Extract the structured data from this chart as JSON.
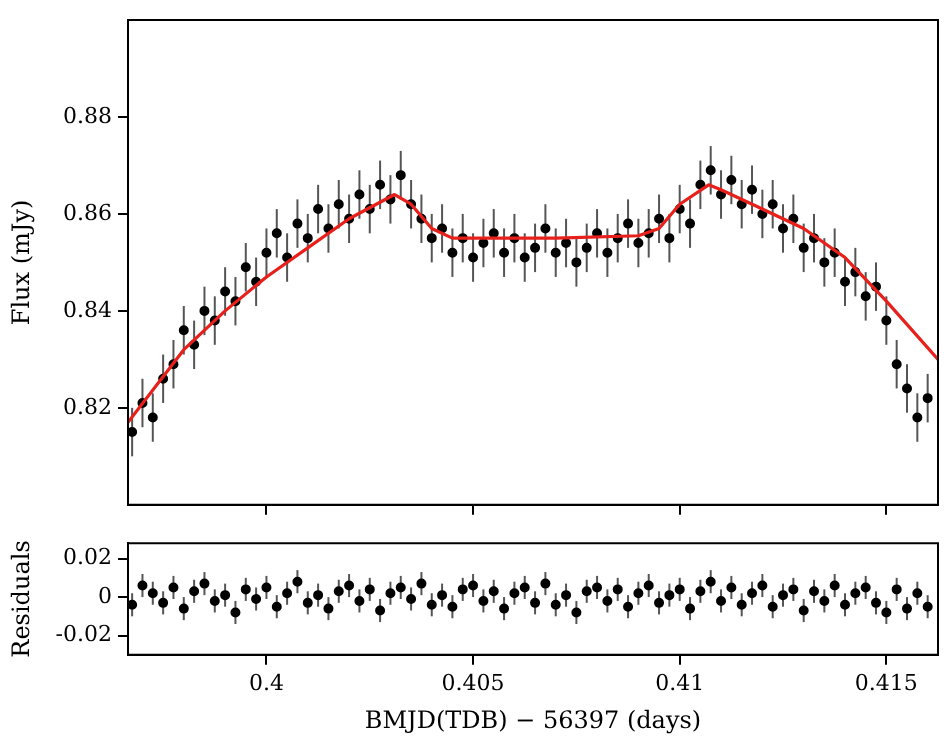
{
  "chart_data": [
    {
      "type": "scatter",
      "ylabel": "Flux (mJy)",
      "xlim": [
        0.39665,
        0.41625
      ],
      "xticks": [
        {
          "value": 0.4,
          "label": null
        },
        {
          "value": 0.405,
          "label": null
        },
        {
          "value": 0.41,
          "label": null
        },
        {
          "value": 0.415,
          "label": null
        }
      ],
      "ylim": [
        0.8,
        0.9
      ],
      "yticks": [
        0.82,
        0.84,
        0.86,
        0.88
      ],
      "tick_labels": "y",
      "grid": false,
      "legend": false,
      "marker": "circle",
      "x": [
        0.39675,
        0.397,
        0.39725,
        0.3975,
        0.39775,
        0.398,
        0.39825,
        0.3985,
        0.39875,
        0.399,
        0.39925,
        0.3995,
        0.39975,
        0.4,
        0.40025,
        0.4005,
        0.40075,
        0.401,
        0.40125,
        0.4015,
        0.40175,
        0.402,
        0.40225,
        0.4025,
        0.40275,
        0.403,
        0.40325,
        0.4035,
        0.40375,
        0.404,
        0.40425,
        0.4045,
        0.40475,
        0.405,
        0.40525,
        0.4055,
        0.40575,
        0.406,
        0.40625,
        0.4065,
        0.40675,
        0.407,
        0.40725,
        0.4075,
        0.40775,
        0.408,
        0.40825,
        0.4085,
        0.40875,
        0.409,
        0.40925,
        0.4095,
        0.40975,
        0.41,
        0.41025,
        0.4105,
        0.41075,
        0.411,
        0.41125,
        0.4115,
        0.41175,
        0.412,
        0.41225,
        0.4125,
        0.41275,
        0.413,
        0.41325,
        0.4135,
        0.41375,
        0.414,
        0.41425,
        0.4145,
        0.41475,
        0.415,
        0.41525,
        0.4155,
        0.41575,
        0.416
      ],
      "series": [
        {
          "type": "scatter",
          "color": "#000000",
          "values": [
            0.815,
            0.821,
            0.818,
            0.826,
            0.829,
            0.836,
            0.833,
            0.84,
            0.838,
            0.844,
            0.842,
            0.849,
            0.846,
            0.852,
            0.856,
            0.851,
            0.858,
            0.855,
            0.861,
            0.857,
            0.862,
            0.859,
            0.864,
            0.861,
            0.866,
            0.863,
            0.868,
            0.862,
            0.859,
            0.855,
            0.857,
            0.852,
            0.855,
            0.851,
            0.854,
            0.856,
            0.852,
            0.855,
            0.851,
            0.853,
            0.857,
            0.852,
            0.854,
            0.85,
            0.853,
            0.856,
            0.852,
            0.855,
            0.858,
            0.854,
            0.856,
            0.859,
            0.855,
            0.861,
            0.858,
            0.866,
            0.869,
            0.864,
            0.867,
            0.862,
            0.865,
            0.86,
            0.862,
            0.857,
            0.859,
            0.853,
            0.855,
            0.85,
            0.852,
            0.846,
            0.848,
            0.843,
            0.845,
            0.838,
            0.829,
            0.824,
            0.818,
            0.822
          ],
          "errors": [
            0.005,
            0.005,
            0.005,
            0.005,
            0.005,
            0.005,
            0.005,
            0.005,
            0.005,
            0.005,
            0.005,
            0.005,
            0.005,
            0.005,
            0.005,
            0.005,
            0.005,
            0.005,
            0.005,
            0.005,
            0.005,
            0.005,
            0.005,
            0.005,
            0.005,
            0.005,
            0.005,
            0.005,
            0.005,
            0.005,
            0.005,
            0.005,
            0.005,
            0.005,
            0.005,
            0.005,
            0.005,
            0.005,
            0.005,
            0.005,
            0.005,
            0.005,
            0.005,
            0.005,
            0.005,
            0.005,
            0.005,
            0.005,
            0.005,
            0.005,
            0.005,
            0.005,
            0.005,
            0.005,
            0.005,
            0.005,
            0.005,
            0.005,
            0.005,
            0.005,
            0.005,
            0.005,
            0.005,
            0.005,
            0.005,
            0.005,
            0.005,
            0.005,
            0.005,
            0.005,
            0.005,
            0.005,
            0.005,
            0.005,
            0.005,
            0.005,
            0.005,
            0.005
          ]
        },
        {
          "type": "line",
          "color": "#e8201c",
          "marker": "none",
          "x": [
            0.39665,
            0.398,
            0.399,
            0.4,
            0.401,
            0.402,
            0.4031,
            0.4035,
            0.404,
            0.4045,
            0.407,
            0.409,
            0.4095,
            0.41,
            0.4107,
            0.411,
            0.412,
            0.413,
            0.414,
            0.415,
            0.41625
          ],
          "values": [
            0.817,
            0.832,
            0.84,
            0.847,
            0.853,
            0.859,
            0.864,
            0.862,
            0.857,
            0.855,
            0.855,
            0.8555,
            0.857,
            0.862,
            0.866,
            0.865,
            0.861,
            0.857,
            0.851,
            0.842,
            0.83
          ]
        }
      ]
    },
    {
      "type": "scatter",
      "ylabel": "Residuals",
      "xlabel": "BMJD(TDB) − 56397 (days)",
      "xlim": [
        0.39665,
        0.41625
      ],
      "xticks": [
        0.4,
        0.405,
        0.41,
        0.415
      ],
      "ylim": [
        -0.03,
        0.028
      ],
      "yticks": [
        -0.02,
        0,
        0.02
      ],
      "grid": false,
      "legend": false,
      "marker": "circle",
      "x": [
        0.39675,
        0.397,
        0.39725,
        0.3975,
        0.39775,
        0.398,
        0.39825,
        0.3985,
        0.39875,
        0.399,
        0.39925,
        0.3995,
        0.39975,
        0.4,
        0.40025,
        0.4005,
        0.40075,
        0.401,
        0.40125,
        0.4015,
        0.40175,
        0.402,
        0.40225,
        0.4025,
        0.40275,
        0.403,
        0.40325,
        0.4035,
        0.40375,
        0.404,
        0.40425,
        0.4045,
        0.40475,
        0.405,
        0.40525,
        0.4055,
        0.40575,
        0.406,
        0.40625,
        0.4065,
        0.40675,
        0.407,
        0.40725,
        0.4075,
        0.40775,
        0.408,
        0.40825,
        0.4085,
        0.40875,
        0.409,
        0.40925,
        0.4095,
        0.40975,
        0.41,
        0.41025,
        0.4105,
        0.41075,
        0.411,
        0.41125,
        0.4115,
        0.41175,
        0.412,
        0.41225,
        0.4125,
        0.41275,
        0.413,
        0.41325,
        0.4135,
        0.41375,
        0.414,
        0.41425,
        0.4145,
        0.41475,
        0.415,
        0.41525,
        0.4155,
        0.41575,
        0.416
      ],
      "series": [
        {
          "type": "scatter",
          "color": "#000000",
          "values": [
            -0.004,
            0.006,
            0.002,
            -0.003,
            0.005,
            -0.006,
            0.003,
            0.007,
            -0.002,
            0.001,
            -0.008,
            0.004,
            -0.001,
            0.005,
            -0.005,
            0.002,
            0.008,
            -0.003,
            0.001,
            -0.006,
            0.003,
            0.006,
            -0.002,
            0.004,
            -0.007,
            0.002,
            0.005,
            -0.001,
            0.007,
            -0.004,
            0.001,
            -0.005,
            0.004,
            0.006,
            -0.002,
            0.003,
            -0.006,
            0.002,
            0.005,
            -0.003,
            0.007,
            -0.004,
            0.001,
            -0.008,
            0.003,
            0.005,
            -0.002,
            0.004,
            -0.005,
            0.002,
            0.006,
            -0.003,
            0.001,
            0.004,
            -0.006,
            0.003,
            0.008,
            -0.002,
            0.005,
            -0.004,
            0.002,
            0.006,
            -0.005,
            0.001,
            0.004,
            -0.007,
            0.003,
            -0.002,
            0.006,
            -0.004,
            0.002,
            0.005,
            -0.003,
            -0.008,
            0.004,
            -0.006,
            0.002,
            -0.005
          ],
          "errors": [
            0.006,
            0.006,
            0.006,
            0.006,
            0.006,
            0.006,
            0.006,
            0.006,
            0.006,
            0.006,
            0.006,
            0.006,
            0.006,
            0.006,
            0.006,
            0.006,
            0.006,
            0.006,
            0.006,
            0.006,
            0.006,
            0.006,
            0.006,
            0.006,
            0.006,
            0.006,
            0.006,
            0.006,
            0.006,
            0.006,
            0.006,
            0.006,
            0.006,
            0.006,
            0.006,
            0.006,
            0.006,
            0.006,
            0.006,
            0.006,
            0.006,
            0.006,
            0.006,
            0.006,
            0.006,
            0.006,
            0.006,
            0.006,
            0.006,
            0.006,
            0.006,
            0.006,
            0.006,
            0.006,
            0.006,
            0.006,
            0.006,
            0.006,
            0.006,
            0.006,
            0.006,
            0.006,
            0.006,
            0.006,
            0.006,
            0.006,
            0.006,
            0.006,
            0.006,
            0.006,
            0.006,
            0.006,
            0.006,
            0.006,
            0.006,
            0.006,
            0.006,
            0.006
          ]
        }
      ]
    }
  ]
}
